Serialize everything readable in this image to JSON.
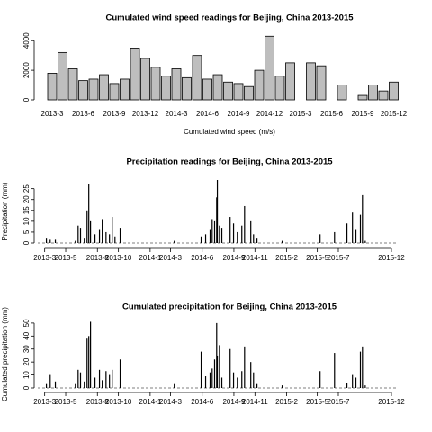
{
  "chart_data": [
    {
      "type": "bar",
      "title": "Cumulated wind speed readings for Beijing, China 2013-2015",
      "x_label": "Cumulated wind speed (m/s)",
      "color": "#bebebe",
      "categories": [
        "2013-3",
        null,
        null,
        "2013-6",
        null,
        null,
        "2013-9",
        null,
        null,
        "2013-12",
        null,
        null,
        "2014-3",
        null,
        null,
        "2014-6",
        null,
        null,
        "2014-9",
        null,
        null,
        "2014-12",
        null,
        null,
        "2015-3",
        null,
        null,
        "2015-6",
        null,
        null,
        "2015-9",
        null,
        null,
        "2015-12"
      ],
      "values": [
        1800,
        3200,
        2100,
        1300,
        1400,
        1700,
        1100,
        1400,
        3500,
        2800,
        2200,
        1600,
        2100,
        1500,
        3000,
        1400,
        1700,
        1200,
        1100,
        900,
        2000,
        4300,
        1600,
        2500,
        null,
        2500,
        2300,
        null,
        1000,
        null,
        300,
        1000,
        600,
        1200
      ],
      "ylim": [
        0,
        4500
      ],
      "yticks": [
        0,
        2000,
        4000
      ]
    },
    {
      "type": "spike",
      "title": "Precipitation readings for Beijing, China 2013-2015",
      "y_label": "Precipitation (mm)",
      "color": "#000000",
      "x": [
        5,
        16,
        31,
        89,
        97,
        104,
        115,
        123,
        128,
        133,
        146,
        159,
        167,
        178,
        188,
        196,
        204,
        219,
        376,
        454,
        467,
        480,
        486,
        493,
        499,
        501,
        507,
        514,
        538,
        548,
        559,
        572,
        580,
        598,
        606,
        616,
        689,
        799,
        841,
        877,
        893,
        903,
        916,
        922,
        930
      ],
      "values": [
        2,
        1.5,
        1.5,
        1,
        8,
        7,
        2,
        15,
        27,
        10,
        4,
        6,
        11,
        5,
        4,
        12,
        3,
        7,
        1,
        3,
        4,
        6,
        11,
        10,
        21,
        29,
        8,
        7,
        12,
        9,
        5,
        8,
        17,
        10,
        4,
        2,
        1,
        4,
        5,
        9,
        14,
        6,
        13,
        22,
        1
      ],
      "xlim": [
        -20,
        1040
      ],
      "xticks": [
        {
          "value": 0,
          "label": "2013-3"
        },
        {
          "value": 61,
          "label": "2013-5"
        },
        {
          "value": 153,
          "label": "2013-8"
        },
        {
          "value": 214,
          "label": "2013-10"
        },
        {
          "value": 306,
          "label": "2014-1"
        },
        {
          "value": 365,
          "label": "2014-3"
        },
        {
          "value": 457,
          "label": "2014-6"
        },
        {
          "value": 549,
          "label": "2014-9"
        },
        {
          "value": 610,
          "label": "2014-11"
        },
        {
          "value": 702,
          "label": "2015-2"
        },
        {
          "value": 791,
          "label": "2015-5"
        },
        {
          "value": 852,
          "label": "2015-7"
        },
        {
          "value": 1006,
          "label": "2015-12"
        }
      ],
      "ylim": [
        0,
        29
      ],
      "yticks": [
        0,
        5,
        10,
        15,
        20,
        25
      ]
    },
    {
      "type": "spike",
      "title": "Cumulated precipitation for Beijing, China 2013-2015",
      "y_label": "Cumulated precipitation (mm)",
      "color": "#000000",
      "x": [
        5,
        16,
        31,
        89,
        97,
        104,
        115,
        123,
        128,
        133,
        146,
        159,
        167,
        178,
        188,
        196,
        219,
        376,
        454,
        467,
        480,
        486,
        493,
        499,
        501,
        507,
        514,
        538,
        548,
        559,
        572,
        580,
        598,
        606,
        616,
        689,
        799,
        841,
        877,
        893,
        903,
        916,
        922,
        930
      ],
      "values": [
        3,
        10,
        5,
        3,
        14,
        12,
        5,
        38,
        40,
        51,
        8,
        14,
        6,
        13,
        10,
        14,
        22,
        3,
        28,
        9,
        12,
        15,
        22,
        50,
        25,
        33,
        8,
        30,
        12,
        8,
        13,
        32,
        20,
        12,
        3,
        2,
        13,
        27,
        4,
        10,
        8,
        28,
        32,
        2
      ],
      "xlim": [
        -20,
        1040
      ],
      "xticks": [
        {
          "value": 0,
          "label": "2013-3"
        },
        {
          "value": 61,
          "label": "2013-5"
        },
        {
          "value": 153,
          "label": "2013-8"
        },
        {
          "value": 214,
          "label": "2013-10"
        },
        {
          "value": 306,
          "label": "2014-1"
        },
        {
          "value": 365,
          "label": "2014-3"
        },
        {
          "value": 457,
          "label": "2014-6"
        },
        {
          "value": 549,
          "label": "2014-9"
        },
        {
          "value": 610,
          "label": "2014-11"
        },
        {
          "value": 702,
          "label": "2015-2"
        },
        {
          "value": 791,
          "label": "2015-5"
        },
        {
          "value": 852,
          "label": "2015-7"
        },
        {
          "value": 1006,
          "label": "2015-12"
        }
      ],
      "ylim": [
        0,
        52
      ],
      "yticks": [
        0,
        10,
        20,
        30,
        40,
        50
      ]
    }
  ]
}
